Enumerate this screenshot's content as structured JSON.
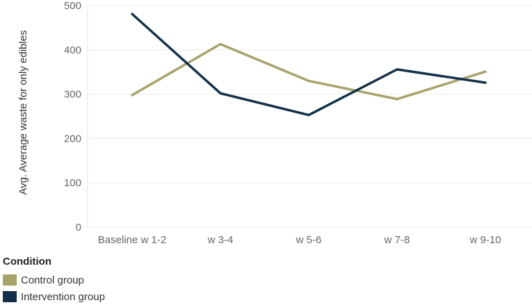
{
  "chart_data": {
    "type": "line",
    "ylabel": "Avg. Average waste for only edibles",
    "categories": [
      "Baseline w 1-2",
      "w 3-4",
      "w 5-6",
      "w 7-8",
      "w 9-10"
    ],
    "ylim": [
      0,
      500
    ],
    "yticks": [
      0,
      100,
      200,
      300,
      400,
      500
    ],
    "grid": true,
    "legend_position": "bottom-left",
    "series": [
      {
        "name": "Control group",
        "color": "#a8a26b",
        "values": [
          298,
          413,
          330,
          289,
          351
        ]
      },
      {
        "name": "Intervention group",
        "color": "#13304a",
        "values": [
          481,
          302,
          253,
          356,
          326
        ]
      }
    ]
  },
  "legend": {
    "title": "Condition",
    "items": [
      {
        "label": "Control group",
        "color": "#a8a26b"
      },
      {
        "label": "Intervention group",
        "color": "#13304a"
      }
    ]
  }
}
